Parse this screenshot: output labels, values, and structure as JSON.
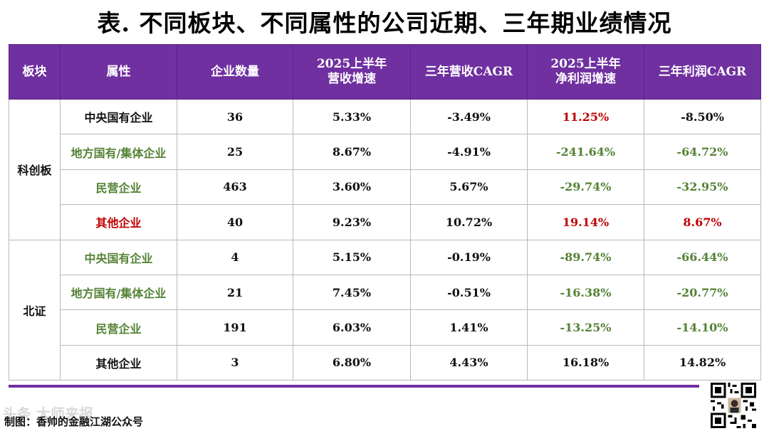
{
  "title": "表. 不同板块、不同属性的公司近期、三年期业绩情况",
  "header": {
    "sector": "板块",
    "attribute": "属性",
    "count": "企业数量",
    "rev_growth_line1": "2025上半年",
    "rev_growth_line2": "营收增速",
    "rev_cagr": "三年营收CAGR",
    "profit_growth_line1": "2025上半年",
    "profit_growth_line2": "净利润增速",
    "profit_cagr": "三年利润CAGR"
  },
  "groups": [
    {
      "sector": "科创板",
      "rows": [
        {
          "attribute": "中央国有企业",
          "attr_color": "black",
          "count": "36",
          "rev_growth": "5.33%",
          "rev_cagr": "-3.49%",
          "profit_growth": "11.25%",
          "profit_growth_color": "red",
          "profit_cagr": "-8.50%",
          "profit_cagr_color": "black"
        },
        {
          "attribute": "地方国有/集体企业",
          "attr_color": "green",
          "count": "25",
          "rev_growth": "8.67%",
          "rev_cagr": "-4.91%",
          "profit_growth": "-241.64%",
          "profit_growth_color": "green",
          "profit_cagr": "-64.72%",
          "profit_cagr_color": "green"
        },
        {
          "attribute": "民营企业",
          "attr_color": "green",
          "count": "463",
          "rev_growth": "3.60%",
          "rev_cagr": "5.67%",
          "profit_growth": "-29.74%",
          "profit_growth_color": "green",
          "profit_cagr": "-32.95%",
          "profit_cagr_color": "green"
        },
        {
          "attribute": "其他企业",
          "attr_color": "red",
          "count": "40",
          "rev_growth": "9.23%",
          "rev_cagr": "10.72%",
          "profit_growth": "19.14%",
          "profit_growth_color": "red",
          "profit_cagr": "8.67%",
          "profit_cagr_color": "red"
        }
      ]
    },
    {
      "sector": "北证",
      "rows": [
        {
          "attribute": "中央国有企业",
          "attr_color": "green",
          "count": "4",
          "rev_growth": "5.15%",
          "rev_cagr": "-0.19%",
          "profit_growth": "-89.74%",
          "profit_growth_color": "green",
          "profit_cagr": "-66.44%",
          "profit_cagr_color": "green"
        },
        {
          "attribute": "地方国有/集体企业",
          "attr_color": "green",
          "count": "21",
          "rev_growth": "7.45%",
          "rev_cagr": "-0.51%",
          "profit_growth": "-16.38%",
          "profit_growth_color": "green",
          "profit_cagr": "-20.77%",
          "profit_cagr_color": "green"
        },
        {
          "attribute": "民营企业",
          "attr_color": "green",
          "count": "191",
          "rev_growth": "6.03%",
          "rev_cagr": "1.41%",
          "profit_growth": "-13.25%",
          "profit_growth_color": "green",
          "profit_cagr": "-14.10%",
          "profit_cagr_color": "green"
        },
        {
          "attribute": "其他企业",
          "attr_color": "black",
          "count": "3",
          "rev_growth": "6.80%",
          "rev_cagr": "4.43%",
          "profit_growth": "16.18%",
          "profit_growth_color": "black",
          "profit_cagr": "14.82%",
          "profit_cagr_color": "black"
        }
      ]
    }
  ],
  "footer": {
    "credit": "制图：香帅的金融江湖公众号",
    "watermark": "头条 大师来报"
  },
  "colors": {
    "header_bg": "#7030a0",
    "green": "#548235",
    "red": "#c00000",
    "black": "#111111"
  },
  "icons": {
    "qr": "qr-code-icon"
  }
}
